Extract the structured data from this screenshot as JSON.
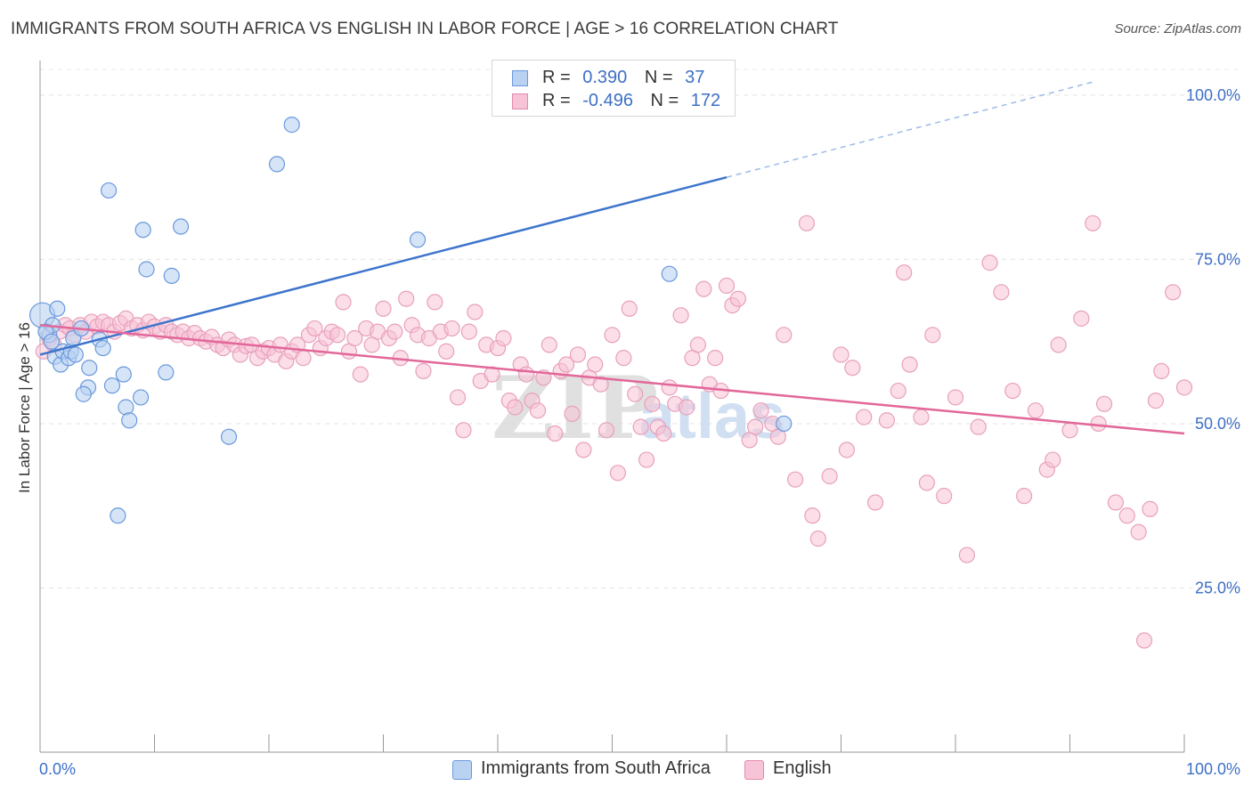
{
  "title": "IMMIGRANTS FROM SOUTH AFRICA VS ENGLISH IN LABOR FORCE | AGE > 16 CORRELATION CHART",
  "source": "Source: ZipAtlas.com",
  "watermark": {
    "zip": "ZIP",
    "atlas": "atlas"
  },
  "legend": {
    "rows": [
      {
        "r_label": "R =",
        "r_value": "0.390",
        "n_label": "N =",
        "n_value": "37"
      },
      {
        "r_label": "R =",
        "r_value": "-0.496",
        "n_label": "N =",
        "n_value": "172"
      }
    ]
  },
  "chart_data": {
    "type": "scatter",
    "title": "IMMIGRANTS FROM SOUTH AFRICA VS ENGLISH IN LABOR FORCE | AGE > 16 CORRELATION CHART",
    "xlabel": "",
    "ylabel": "In Labor Force | Age > 16",
    "xlim": [
      0,
      100
    ],
    "ylim": [
      0,
      105
    ],
    "x_tick_labels": [
      "0.0%",
      "100.0%"
    ],
    "y_tick_labels": [
      "100.0%",
      "75.0%",
      "50.0%",
      "25.0%"
    ],
    "y_ticks": [
      100,
      75,
      50,
      25
    ],
    "grid": "horizontal dashed",
    "legend_position": "top-center",
    "colors": {
      "blue": "#4a7fd4",
      "blue_fill": "#b9d2f2",
      "pink": "#e8699a",
      "pink_fill": "#f7c3d6"
    },
    "series": [
      {
        "name": "Immigrants from South Africa",
        "color": "#4a7fd4",
        "R": 0.39,
        "N": 37,
        "trend": {
          "x0": 0,
          "y0": 60.5,
          "x1": 60,
          "y1": 87.5,
          "dashed_to_x": 92,
          "dashed_to_y": 102
        },
        "points": [
          [
            0.2,
            66.5
          ],
          [
            0.8,
            63.5
          ],
          [
            1.1,
            65
          ],
          [
            1.3,
            60.2
          ],
          [
            1.5,
            67.5
          ],
          [
            1.8,
            59
          ],
          [
            2.0,
            61
          ],
          [
            2.5,
            60
          ],
          [
            2.7,
            61
          ],
          [
            2.9,
            63
          ],
          [
            3.1,
            60.5
          ],
          [
            3.6,
            64.5
          ],
          [
            4.2,
            55.5
          ],
          [
            3.8,
            54.5
          ],
          [
            4.3,
            58.5
          ],
          [
            5.2,
            62.8
          ],
          [
            5.5,
            61.5
          ],
          [
            6.0,
            85.5
          ],
          [
            6.3,
            55.8
          ],
          [
            7.3,
            57.5
          ],
          [
            7.5,
            52.5
          ],
          [
            7.8,
            50.5
          ],
          [
            8.8,
            54
          ],
          [
            9.0,
            79.5
          ],
          [
            9.3,
            73.5
          ],
          [
            11.0,
            57.8
          ],
          [
            11.5,
            72.5
          ],
          [
            12.3,
            80
          ],
          [
            16.5,
            48
          ],
          [
            20.7,
            89.5
          ],
          [
            22.0,
            95.5
          ],
          [
            33.0,
            78
          ],
          [
            6.8,
            36
          ],
          [
            55,
            72.8
          ],
          [
            65,
            50
          ],
          [
            0.5,
            64
          ],
          [
            1.0,
            62.5
          ]
        ]
      },
      {
        "name": "English",
        "color": "#e8699a",
        "R": -0.496,
        "N": 172,
        "trend": {
          "x0": 0,
          "y0": 65,
          "x1": 100,
          "y1": 48.5
        },
        "points": [
          [
            0.3,
            61
          ],
          [
            0.8,
            63
          ],
          [
            1.2,
            62
          ],
          [
            1.7,
            64
          ],
          [
            2.2,
            65
          ],
          [
            2.6,
            64.5
          ],
          [
            3.0,
            63.5
          ],
          [
            3.5,
            65
          ],
          [
            4.0,
            64
          ],
          [
            4.5,
            65.5
          ],
          [
            5.0,
            64.8
          ],
          [
            5.5,
            65.5
          ],
          [
            6.0,
            65
          ],
          [
            6.5,
            64
          ],
          [
            7.0,
            65.3
          ],
          [
            7.5,
            66
          ],
          [
            8.0,
            64.5
          ],
          [
            8.5,
            65
          ],
          [
            9.0,
            64.2
          ],
          [
            9.5,
            65.5
          ],
          [
            10.0,
            64.8
          ],
          [
            10.5,
            64
          ],
          [
            11.0,
            65
          ],
          [
            11.5,
            64
          ],
          [
            12.0,
            63.5
          ],
          [
            12.5,
            64
          ],
          [
            13.0,
            63
          ],
          [
            13.5,
            63.8
          ],
          [
            14.0,
            63
          ],
          [
            14.5,
            62.5
          ],
          [
            15.0,
            63.2
          ],
          [
            15.5,
            62
          ],
          [
            16.0,
            61.5
          ],
          [
            16.5,
            62.8
          ],
          [
            17.0,
            62
          ],
          [
            17.5,
            60.5
          ],
          [
            18.0,
            61.8
          ],
          [
            18.5,
            62
          ],
          [
            19.0,
            60
          ],
          [
            19.5,
            61
          ],
          [
            20.0,
            61.5
          ],
          [
            20.5,
            60.5
          ],
          [
            21.0,
            62
          ],
          [
            21.5,
            59.5
          ],
          [
            22.0,
            61
          ],
          [
            22.5,
            62
          ],
          [
            23.0,
            60
          ],
          [
            23.5,
            63.5
          ],
          [
            24.0,
            64.5
          ],
          [
            24.5,
            61.5
          ],
          [
            25.0,
            63
          ],
          [
            25.5,
            64
          ],
          [
            26.0,
            63.5
          ],
          [
            26.5,
            68.5
          ],
          [
            27.0,
            61
          ],
          [
            27.5,
            63
          ],
          [
            28.0,
            57.5
          ],
          [
            28.5,
            64.5
          ],
          [
            29.0,
            62
          ],
          [
            29.5,
            64
          ],
          [
            30.0,
            67.5
          ],
          [
            30.5,
            63
          ],
          [
            31.0,
            64
          ],
          [
            31.5,
            60
          ],
          [
            32.0,
            69
          ],
          [
            32.5,
            65
          ],
          [
            33.0,
            63.5
          ],
          [
            33.5,
            58
          ],
          [
            34.0,
            63
          ],
          [
            34.5,
            68.5
          ],
          [
            35.0,
            64
          ],
          [
            35.5,
            61
          ],
          [
            36.0,
            64.5
          ],
          [
            36.5,
            54
          ],
          [
            37.0,
            49
          ],
          [
            37.5,
            64
          ],
          [
            38.0,
            67
          ],
          [
            38.5,
            56.5
          ],
          [
            39.0,
            62
          ],
          [
            39.5,
            57.5
          ],
          [
            40.0,
            61.5
          ],
          [
            40.5,
            63
          ],
          [
            41.0,
            53.5
          ],
          [
            41.5,
            52.5
          ],
          [
            42.0,
            59
          ],
          [
            42.5,
            57.5
          ],
          [
            43.0,
            53.5
          ],
          [
            43.5,
            52
          ],
          [
            44.0,
            57
          ],
          [
            44.5,
            62
          ],
          [
            45.0,
            48.5
          ],
          [
            45.5,
            58
          ],
          [
            46.0,
            59
          ],
          [
            46.5,
            51.5
          ],
          [
            47.0,
            60.5
          ],
          [
            47.5,
            46
          ],
          [
            48.0,
            57
          ],
          [
            48.5,
            59
          ],
          [
            49.0,
            56
          ],
          [
            49.5,
            49
          ],
          [
            50.0,
            63.5
          ],
          [
            50.5,
            42.5
          ],
          [
            51.0,
            60
          ],
          [
            51.5,
            67.5
          ],
          [
            52.0,
            54.5
          ],
          [
            52.5,
            49.5
          ],
          [
            53.0,
            44.5
          ],
          [
            53.5,
            53
          ],
          [
            54.0,
            49.5
          ],
          [
            54.5,
            48.5
          ],
          [
            55.0,
            55.5
          ],
          [
            55.5,
            53
          ],
          [
            56.0,
            66.5
          ],
          [
            56.5,
            52.5
          ],
          [
            57.0,
            60
          ],
          [
            57.5,
            62
          ],
          [
            58.0,
            70.5
          ],
          [
            58.5,
            56
          ],
          [
            59.0,
            60
          ],
          [
            59.5,
            55
          ],
          [
            60.0,
            71
          ],
          [
            60.5,
            68
          ],
          [
            61.0,
            69
          ],
          [
            62.0,
            47.5
          ],
          [
            63.0,
            52
          ],
          [
            64.0,
            50
          ],
          [
            65.0,
            63.5
          ],
          [
            66.0,
            41.5
          ],
          [
            67.0,
            80.5
          ],
          [
            68.0,
            32.5
          ],
          [
            69.0,
            42
          ],
          [
            70.0,
            60.5
          ],
          [
            71.0,
            58.5
          ],
          [
            72.0,
            51
          ],
          [
            73.0,
            38
          ],
          [
            74.0,
            50.5
          ],
          [
            75.0,
            55
          ],
          [
            76.0,
            59
          ],
          [
            77.0,
            51
          ],
          [
            78.0,
            63.5
          ],
          [
            79.0,
            39
          ],
          [
            80.0,
            54
          ],
          [
            81.0,
            30
          ],
          [
            82.0,
            49.5
          ],
          [
            83.0,
            74.5
          ],
          [
            84.0,
            70
          ],
          [
            85.0,
            55
          ],
          [
            86.0,
            39
          ],
          [
            87.0,
            52
          ],
          [
            88.0,
            43
          ],
          [
            89.0,
            62
          ],
          [
            90.0,
            49
          ],
          [
            91.0,
            66
          ],
          [
            92.0,
            80.5
          ],
          [
            93.0,
            53
          ],
          [
            94.0,
            38
          ],
          [
            95.0,
            36
          ],
          [
            96.0,
            33.5
          ],
          [
            97.0,
            37
          ],
          [
            98.0,
            58
          ],
          [
            99.0,
            70
          ],
          [
            100.0,
            55.5
          ],
          [
            92.5,
            50
          ],
          [
            67.5,
            36
          ],
          [
            75.5,
            73
          ],
          [
            64.5,
            48
          ],
          [
            62.5,
            49.5
          ],
          [
            77.5,
            41
          ],
          [
            70.5,
            46
          ],
          [
            88.5,
            44.5
          ],
          [
            96.5,
            17
          ],
          [
            97.5,
            53.5
          ]
        ]
      }
    ]
  }
}
